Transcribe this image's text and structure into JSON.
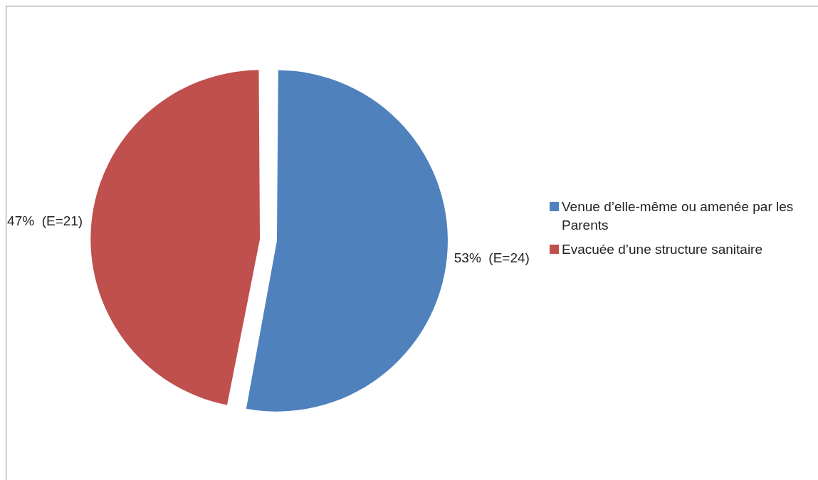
{
  "chart_data": {
    "type": "pie",
    "categories": [
      "Venue d’elle-même ou amenée par les Parents",
      "Evacuée d’une structure sanitaire"
    ],
    "values": [
      53,
      47
    ],
    "colors": [
      "#4f81bd",
      "#c0504d"
    ],
    "value_labels": [
      "53%  (E=24)",
      "47%  (E=21)"
    ],
    "legend": "right"
  }
}
